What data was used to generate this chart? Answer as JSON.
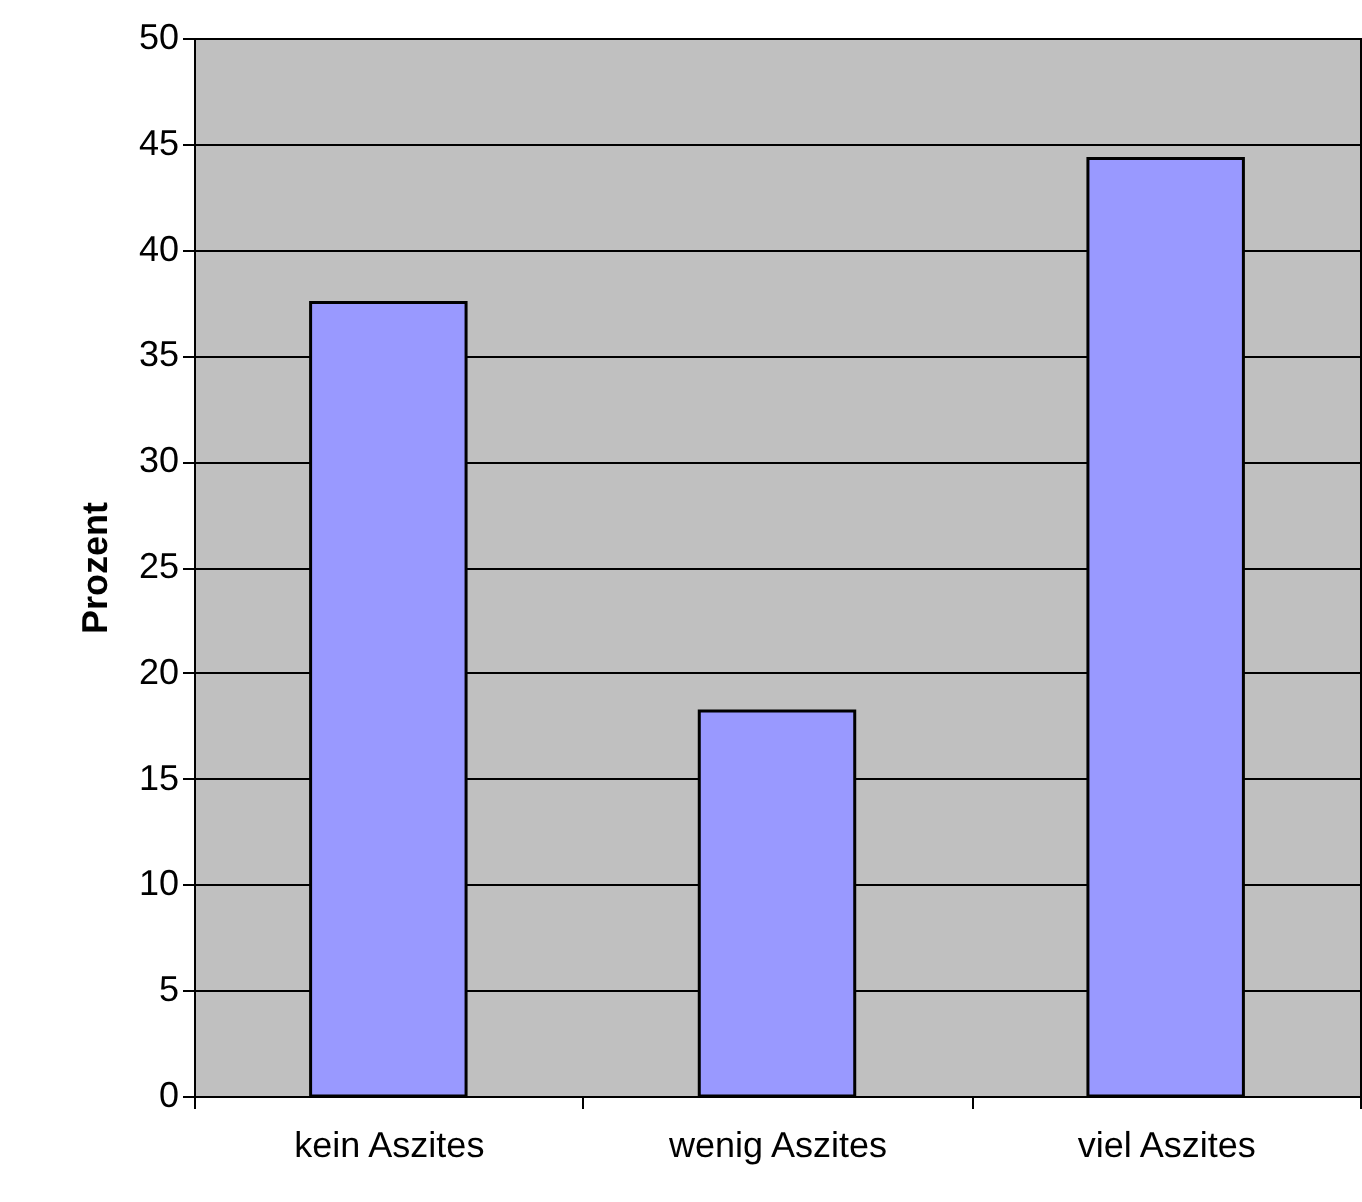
{
  "chart_data": {
    "type": "bar",
    "ylabel": "Prozent",
    "categories": [
      "kein Aszites",
      "wenig Aszites",
      "viel Aszites"
    ],
    "values": [
      37.5,
      18.2,
      44.3
    ],
    "color": "#9999ff",
    "ylim": [
      0,
      50
    ],
    "yticks": [
      0,
      5,
      10,
      15,
      20,
      25,
      30,
      35,
      40,
      45,
      50
    ],
    "grid": "y"
  }
}
